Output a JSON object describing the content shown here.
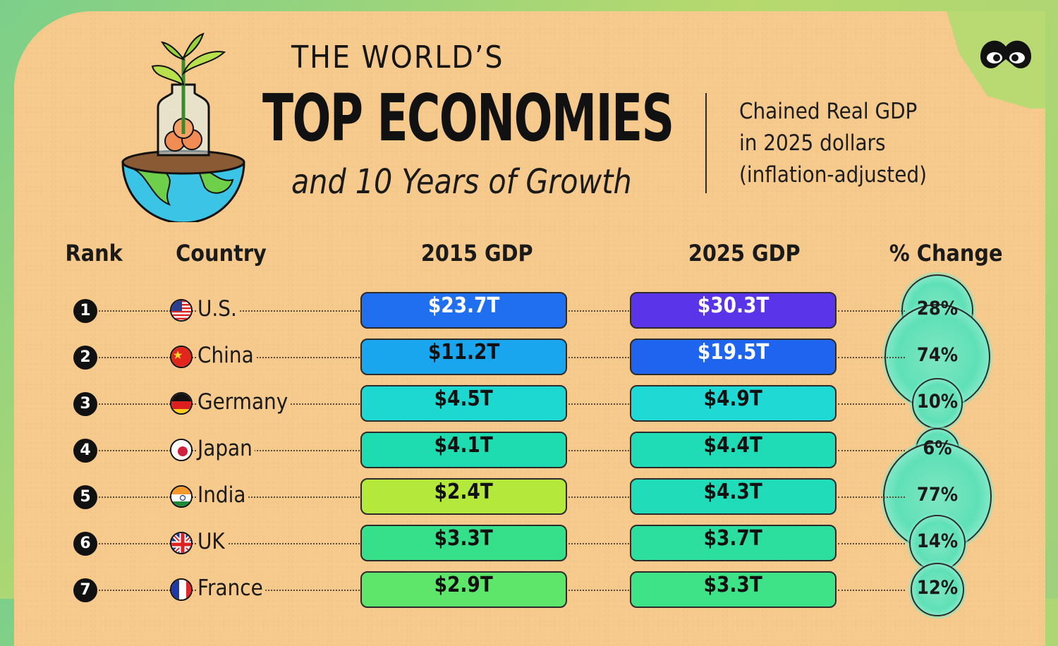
{
  "header": {
    "pre": "THE WORLD’S",
    "main": "TOP ECONOMIES",
    "sub": "and 10 Years of Growth",
    "note_line1": "Chained Real GDP",
    "note_line2": "in 2025 dollars",
    "note_line3": "(inflation-adjusted)"
  },
  "columns": {
    "rank": "Rank",
    "country": "Country",
    "gdp2015": "2015 GDP",
    "gdp2025": "2025 GDP",
    "change": "% Change"
  },
  "colors": {
    "card": "#f6c98c",
    "ink": "#111111",
    "bubble": "#5fe0b6"
  },
  "chart_data": {
    "type": "table",
    "title": "THE WORLD’S TOP ECONOMIES and 10 Years of Growth",
    "subtitle": "Chained Real GDP in 2025 dollars (inflation-adjusted)",
    "units": "trillions USD",
    "rows": [
      {
        "rank": "1",
        "country": "U.S.",
        "flag": "us-flag-icon",
        "gdp2015_label": "$23.7T",
        "gdp2025_label": "$30.3T",
        "gdp2015": 23.7,
        "gdp2025": 30.3,
        "change_label": "28%",
        "change": 28,
        "c2015": "#1f6ff0",
        "c2025": "#5a34e8",
        "t2015": "#ffffff",
        "t2025": "#ffffff"
      },
      {
        "rank": "2",
        "country": "China",
        "flag": "cn-flag-icon",
        "gdp2015_label": "$11.2T",
        "gdp2025_label": "$19.5T",
        "gdp2015": 11.2,
        "gdp2025": 19.5,
        "change_label": "74%",
        "change": 74,
        "c2015": "#1aa6ef",
        "c2025": "#1e64ef",
        "t2015": "#111111",
        "t2025": "#ffffff"
      },
      {
        "rank": "3",
        "country": "Germany",
        "flag": "de-flag-icon",
        "gdp2015_label": "$4.5T",
        "gdp2025_label": "$4.9T",
        "gdp2015": 4.5,
        "gdp2025": 4.9,
        "change_label": "10%",
        "change": 10,
        "c2015": "#1dd8d0",
        "c2025": "#1fd9d4",
        "t2015": "#111111",
        "t2025": "#111111"
      },
      {
        "rank": "4",
        "country": "Japan",
        "flag": "jp-flag-icon",
        "gdp2015_label": "$4.1T",
        "gdp2025_label": "$4.4T",
        "gdp2015": 4.1,
        "gdp2025": 4.4,
        "change_label": "6%",
        "change": 6,
        "c2015": "#1fdcb0",
        "c2025": "#1fdcb6",
        "t2015": "#111111",
        "t2025": "#111111"
      },
      {
        "rank": "5",
        "country": "India",
        "flag": "in-flag-icon",
        "gdp2015_label": "$2.4T",
        "gdp2025_label": "$4.3T",
        "gdp2015": 2.4,
        "gdp2025": 4.3,
        "change_label": "77%",
        "change": 77,
        "c2015": "#b4e83a",
        "c2025": "#20dcb8",
        "t2015": "#111111",
        "t2025": "#111111"
      },
      {
        "rank": "6",
        "country": "UK",
        "flag": "uk-flag-icon",
        "gdp2015_label": "$3.3T",
        "gdp2025_label": "$3.7T",
        "gdp2015": 3.3,
        "gdp2025": 3.7,
        "change_label": "14%",
        "change": 14,
        "c2015": "#36e08a",
        "c2025": "#2ddf9e",
        "t2015": "#111111",
        "t2025": "#111111"
      },
      {
        "rank": "7",
        "country": "France",
        "flag": "fr-flag-icon",
        "gdp2015_label": "$2.9T",
        "gdp2025_label": "$3.3T",
        "gdp2015": 2.9,
        "gdp2025": 3.3,
        "change_label": "12%",
        "change": 12,
        "c2015": "#5ee66a",
        "c2025": "#3ee287",
        "t2015": "#111111",
        "t2025": "#111111"
      }
    ]
  }
}
